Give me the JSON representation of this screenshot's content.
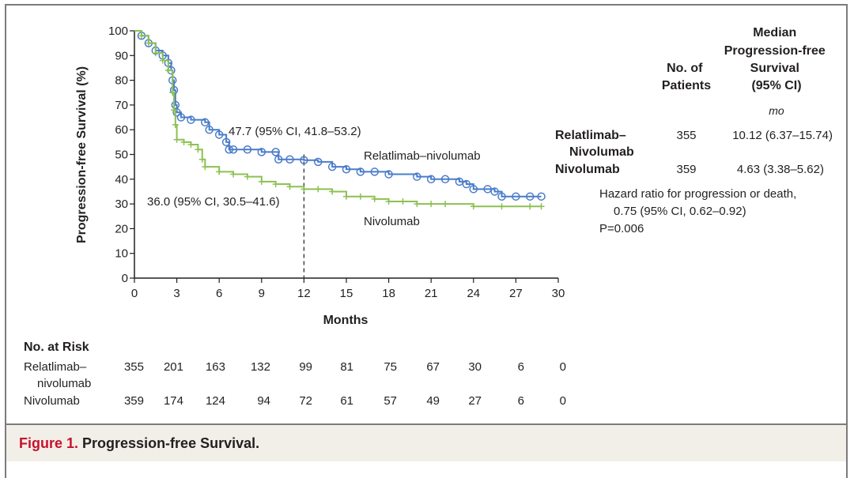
{
  "chart_data": {
    "type": "line",
    "subtype": "kaplan-meier",
    "title": "Progression-free Survival",
    "xlabel": "Months",
    "ylabel": "Progression-free Survival (%)",
    "xlim": [
      0,
      30
    ],
    "ylim": [
      0,
      100
    ],
    "xticks": [
      0,
      3,
      6,
      9,
      12,
      15,
      18,
      21,
      24,
      27,
      30
    ],
    "yticks": [
      0,
      10,
      20,
      30,
      40,
      50,
      60,
      70,
      80,
      90,
      100
    ],
    "grid": false,
    "series": [
      {
        "name": "Relatlimab–nivolumab",
        "color": "#4a7cc9",
        "marker": "circle",
        "points": [
          [
            0,
            100
          ],
          [
            0.5,
            98
          ],
          [
            1,
            95
          ],
          [
            1.5,
            92
          ],
          [
            2,
            90
          ],
          [
            2.4,
            87
          ],
          [
            2.6,
            84
          ],
          [
            2.7,
            80
          ],
          [
            2.8,
            76
          ],
          [
            2.9,
            70
          ],
          [
            3,
            67
          ],
          [
            3.3,
            65
          ],
          [
            4,
            64
          ],
          [
            5,
            63
          ],
          [
            5.3,
            60
          ],
          [
            6,
            58
          ],
          [
            6.5,
            55
          ],
          [
            6.7,
            52
          ],
          [
            7,
            52
          ],
          [
            8,
            52
          ],
          [
            9,
            51
          ],
          [
            10,
            51
          ],
          [
            10.2,
            48
          ],
          [
            11,
            48
          ],
          [
            12,
            47.7
          ],
          [
            13,
            47
          ],
          [
            14,
            45
          ],
          [
            15,
            44
          ],
          [
            16,
            43
          ],
          [
            17,
            43
          ],
          [
            18,
            42
          ],
          [
            20,
            41
          ],
          [
            21,
            40
          ],
          [
            22,
            40
          ],
          [
            23,
            39
          ],
          [
            23.5,
            38
          ],
          [
            24,
            36
          ],
          [
            25,
            36
          ],
          [
            25.5,
            35
          ],
          [
            26,
            33
          ],
          [
            27,
            33
          ],
          [
            28,
            33
          ],
          [
            28.8,
            33
          ]
        ]
      },
      {
        "name": "Nivolumab",
        "color": "#8cc152",
        "marker": "plus",
        "points": [
          [
            0,
            100
          ],
          [
            0.5,
            98
          ],
          [
            1,
            95
          ],
          [
            1.5,
            91
          ],
          [
            2,
            88
          ],
          [
            2.4,
            84
          ],
          [
            2.7,
            75
          ],
          [
            2.8,
            68
          ],
          [
            2.9,
            62
          ],
          [
            3,
            56
          ],
          [
            3.5,
            55
          ],
          [
            4,
            54
          ],
          [
            4.5,
            52
          ],
          [
            4.8,
            48
          ],
          [
            5,
            45
          ],
          [
            6,
            43
          ],
          [
            7,
            42
          ],
          [
            8,
            41
          ],
          [
            9,
            39
          ],
          [
            10,
            38
          ],
          [
            11,
            37
          ],
          [
            12,
            36
          ],
          [
            13,
            36
          ],
          [
            14,
            35
          ],
          [
            15,
            33
          ],
          [
            16,
            33
          ],
          [
            17,
            32
          ],
          [
            18,
            31
          ],
          [
            19,
            31
          ],
          [
            20,
            30
          ],
          [
            21,
            30
          ],
          [
            22,
            30
          ],
          [
            24,
            29
          ],
          [
            26,
            29
          ],
          [
            28,
            29
          ],
          [
            28.8,
            29
          ]
        ]
      }
    ],
    "annotations": [
      {
        "text": "47.7 (95% CI, 41.8–53.2)",
        "x": 12,
        "y": 47.7
      },
      {
        "text": "36.0 (95% CI, 30.5–41.6)",
        "x": 12,
        "y": 36.0
      },
      {
        "text": "Relatlimab–nivolumab",
        "series_label": true
      },
      {
        "text": "Nivolumab",
        "series_label": true
      }
    ],
    "reference_line": {
      "x": 12,
      "style": "dashed"
    }
  },
  "axis": {
    "ylabel": "Progression-free Survival (%)",
    "xlabel": "Months"
  },
  "labels": {
    "ci_rel": "47.7 (95% CI, 41.8–53.2)",
    "ci_nivo": "36.0 (95% CI, 30.5–41.6)",
    "series_rel": "Relatlimab–nivolumab",
    "series_nivo": "Nivolumab"
  },
  "summary_table": {
    "col_patients": [
      "No. of",
      "Patients"
    ],
    "col_median": [
      "Median",
      "Progression-free",
      "Survival",
      "(95% CI)"
    ],
    "unit": "mo",
    "rows": [
      {
        "name": [
          "Relatlimab–",
          "Nivolumab"
        ],
        "patients": "355",
        "median": "10.12 (6.37–15.74)"
      },
      {
        "name": [
          "Nivolumab"
        ],
        "patients": "359",
        "median": "4.63 (3.38–5.62)"
      }
    ],
    "hazard": [
      "Hazard ratio for progression or death,",
      "0.75 (95% CI, 0.62–0.92)",
      "P=0.006"
    ]
  },
  "risk_table": {
    "title": "No. at Risk",
    "rows": [
      {
        "name": [
          "Relatlimab–",
          "nivolumab"
        ],
        "values": [
          "355",
          "201",
          "163",
          "132",
          "99",
          "81",
          "75",
          "67",
          "30",
          "6",
          "0"
        ]
      },
      {
        "name": [
          "Nivolumab"
        ],
        "values": [
          "359",
          "174",
          "124",
          "94",
          "72",
          "61",
          "57",
          "49",
          "27",
          "6",
          "0"
        ]
      }
    ]
  },
  "caption": {
    "figure": "Figure 1.",
    "title": "Progression-free Survival."
  }
}
